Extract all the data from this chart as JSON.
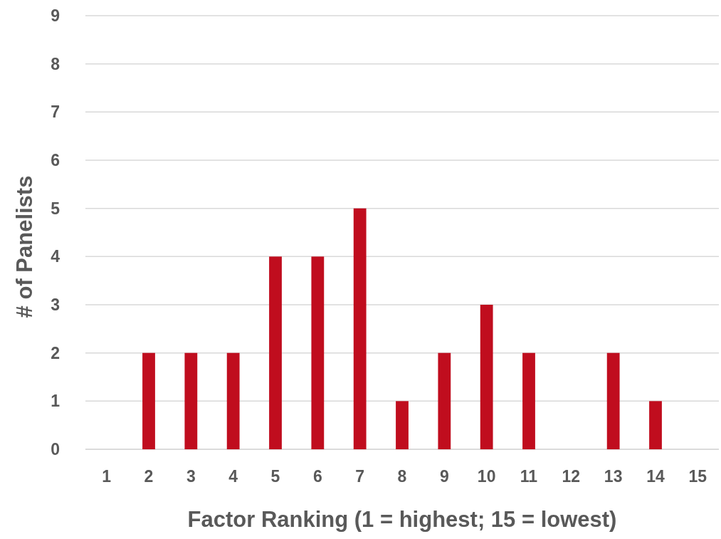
{
  "chart_data": {
    "type": "bar",
    "xlabel": "Factor Ranking (1 = highest; 15 = lowest)",
    "ylabel": "# of Panelists",
    "categories": [
      "1",
      "2",
      "3",
      "4",
      "5",
      "6",
      "7",
      "8",
      "9",
      "10",
      "11",
      "12",
      "13",
      "14",
      "15"
    ],
    "values": [
      0,
      2,
      2,
      2,
      4,
      4,
      5,
      1,
      2,
      3,
      2,
      0,
      2,
      1,
      0
    ],
    "color": "#c00d1e",
    "ylim": [
      0,
      9
    ],
    "yticks": [
      0,
      1,
      2,
      3,
      4,
      5,
      6,
      7,
      8,
      9
    ],
    "grid": "y"
  }
}
